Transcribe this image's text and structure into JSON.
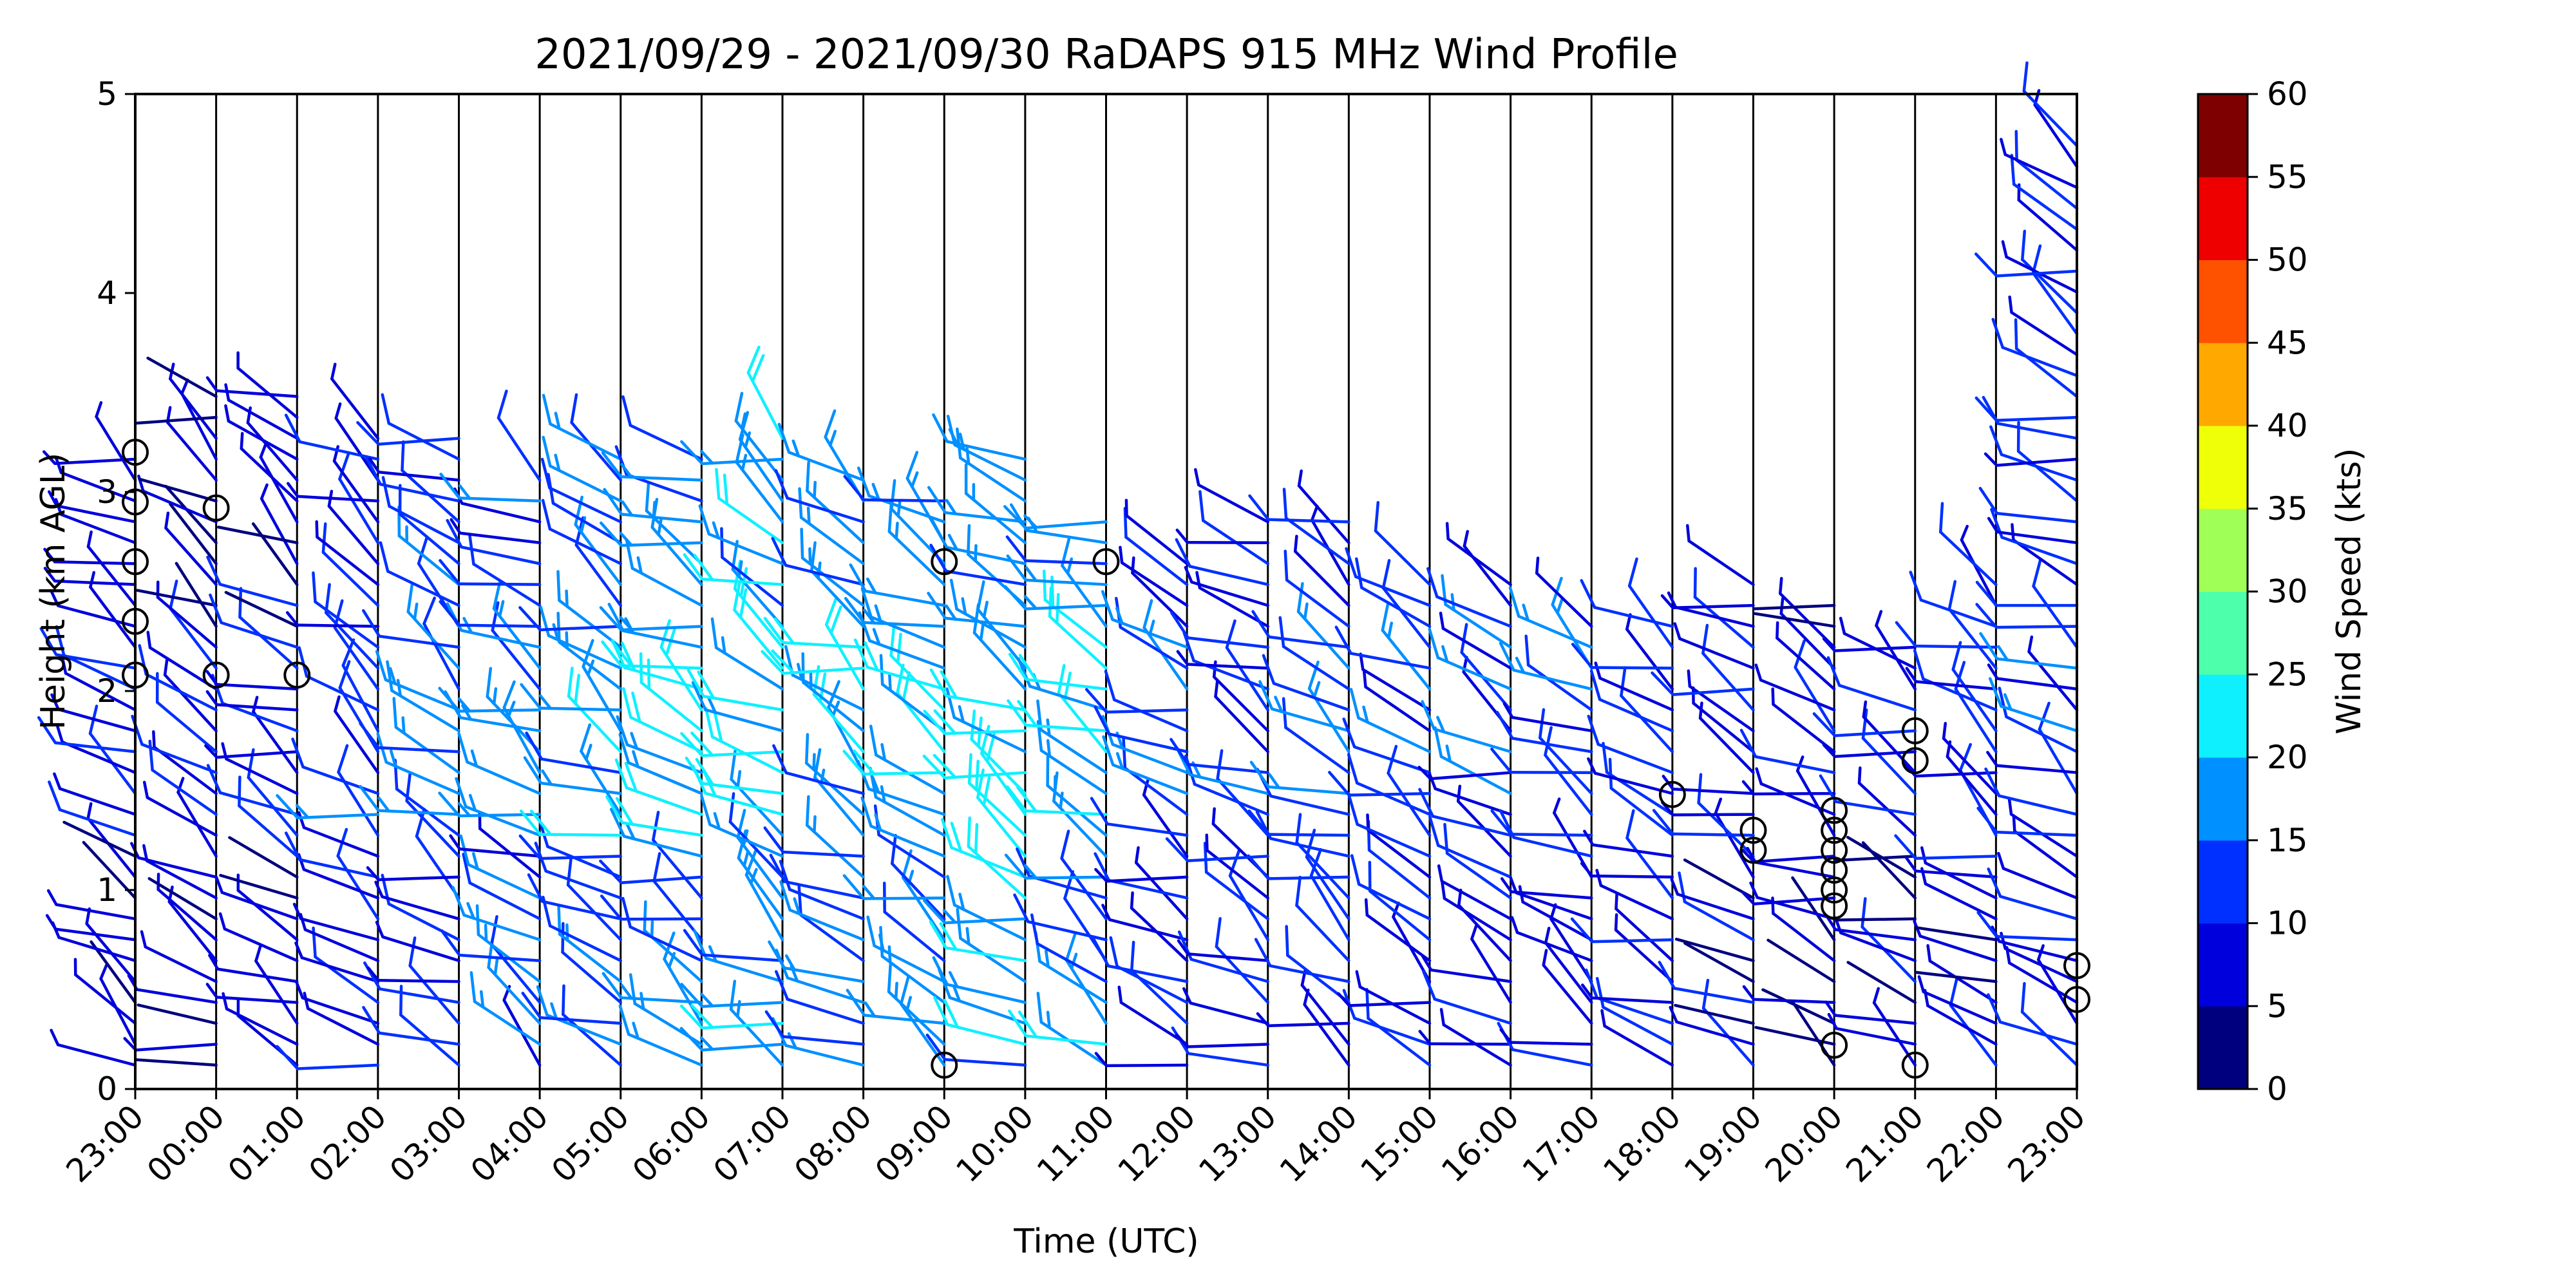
{
  "chart_data": {
    "type": "wind_barb_profile",
    "title": "2021/09/29 - 2021/09/30 RaDAPS 915 MHz Wind Profile",
    "xlabel": "Time (UTC)",
    "ylabel": "Height (km AGL)",
    "xlim": [
      0,
      24
    ],
    "ylim": [
      0,
      5
    ],
    "x_tick_labels": [
      "23:00",
      "00:00",
      "01:00",
      "02:00",
      "03:00",
      "04:00",
      "05:00",
      "06:00",
      "07:00",
      "08:00",
      "09:00",
      "10:00",
      "11:00",
      "12:00",
      "13:00",
      "14:00",
      "15:00",
      "16:00",
      "17:00",
      "18:00",
      "19:00",
      "20:00",
      "21:00",
      "22:00",
      "23:00"
    ],
    "y_ticks": [
      "0",
      "1",
      "2",
      "3",
      "4",
      "5"
    ],
    "vertical_grid": true,
    "colorbar": {
      "label": "Wind Speed (kts)",
      "ticks": [
        "0",
        "5",
        "10",
        "15",
        "20",
        "25",
        "30",
        "35",
        "40",
        "45",
        "50",
        "55",
        "60"
      ],
      "colors": [
        "#00007f",
        "#0000dc",
        "#0030ff",
        "#0090ff",
        "#0ff0ff",
        "#4dffaa",
        "#a0ff56",
        "#eeff08",
        "#ffa800",
        "#ff5200",
        "#ee0000",
        "#7f0000"
      ]
    },
    "hourly_profiles": [
      {
        "hour": 0,
        "top_km": 3.2,
        "mean_speed_kts": 7
      },
      {
        "hour": 1,
        "top_km": 3.5,
        "mean_speed_kts": 6
      },
      {
        "hour": 2,
        "top_km": 3.5,
        "mean_speed_kts": 7
      },
      {
        "hour": 3,
        "top_km": 3.3,
        "mean_speed_kts": 9
      },
      {
        "hour": 4,
        "top_km": 3.3,
        "mean_speed_kts": 12
      },
      {
        "hour": 5,
        "top_km": 3.1,
        "mean_speed_kts": 13
      },
      {
        "hour": 6,
        "top_km": 3.2,
        "mean_speed_kts": 14
      },
      {
        "hour": 7,
        "top_km": 3.2,
        "mean_speed_kts": 16
      },
      {
        "hour": 8,
        "top_km": 3.3,
        "mean_speed_kts": 18
      },
      {
        "hour": 9,
        "top_km": 3.1,
        "mean_speed_kts": 15
      },
      {
        "hour": 10,
        "top_km": 3.0,
        "mean_speed_kts": 16
      },
      {
        "hour": 11,
        "top_km": 3.2,
        "mean_speed_kts": 18
      },
      {
        "hour": 12,
        "top_km": 2.9,
        "mean_speed_kts": 17
      },
      {
        "hour": 13,
        "top_km": 2.7,
        "mean_speed_kts": 11
      },
      {
        "hour": 14,
        "top_km": 2.9,
        "mean_speed_kts": 10
      },
      {
        "hour": 15,
        "top_km": 2.9,
        "mean_speed_kts": 11
      },
      {
        "hour": 16,
        "top_km": 2.6,
        "mean_speed_kts": 10
      },
      {
        "hour": 17,
        "top_km": 2.6,
        "mean_speed_kts": 9
      },
      {
        "hour": 18,
        "top_km": 2.4,
        "mean_speed_kts": 9
      },
      {
        "hour": 19,
        "top_km": 2.4,
        "mean_speed_kts": 8
      },
      {
        "hour": 20,
        "top_km": 2.6,
        "mean_speed_kts": 7
      },
      {
        "hour": 21,
        "top_km": 2.5,
        "mean_speed_kts": 5
      },
      {
        "hour": 22,
        "top_km": 2.3,
        "mean_speed_kts": 7
      },
      {
        "hour": 23,
        "top_km": 2.6,
        "mean_speed_kts": 8
      },
      {
        "hour": 24,
        "top_km": 4.8,
        "mean_speed_kts": 9
      }
    ],
    "calm_markers": [
      {
        "hour": 0,
        "km": [
          3.2,
          2.95,
          2.65,
          2.35,
          2.08
        ]
      },
      {
        "hour": 1,
        "km": [
          2.92,
          2.08
        ]
      },
      {
        "hour": 2,
        "km": [
          2.08
        ]
      },
      {
        "hour": 10,
        "km": [
          2.65,
          0.12
        ]
      },
      {
        "hour": 12,
        "km": [
          2.65
        ]
      },
      {
        "hour": 19,
        "km": [
          1.48
        ]
      },
      {
        "hour": 20,
        "km": [
          1.3,
          1.2
        ]
      },
      {
        "hour": 21,
        "km": [
          1.4,
          1.3,
          1.2,
          1.1,
          1.0,
          0.92,
          0.22
        ]
      },
      {
        "hour": 22,
        "km": [
          1.8,
          1.65,
          0.12
        ]
      },
      {
        "hour": 24,
        "km": [
          0.62,
          0.45
        ]
      }
    ]
  }
}
